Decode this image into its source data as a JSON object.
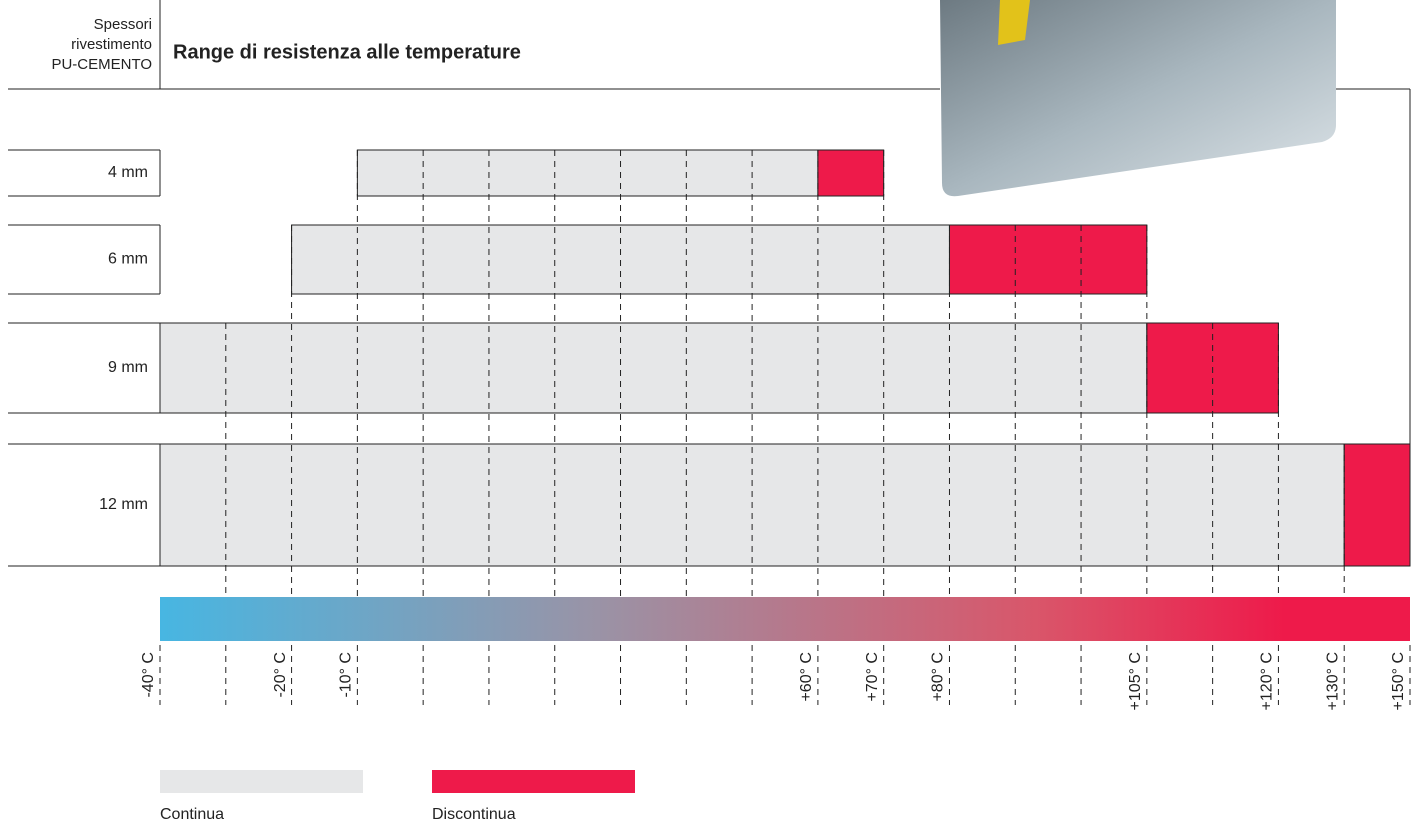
{
  "chart_data": {
    "type": "range",
    "title": "Range di resistenza alle temperature",
    "y_axis_label": "Spessori\nrivestimento\nPU-CEMENTO",
    "categories": [
      "4 mm",
      "6 mm",
      "9 mm",
      "12 mm"
    ],
    "series": [
      {
        "name": "Continua",
        "color": "#e6e7e8",
        "values": [
          [
            -10,
            60
          ],
          [
            -20,
            80
          ],
          [
            -40,
            105
          ],
          [
            -40,
            130
          ]
        ]
      },
      {
        "name": "Discontinua",
        "color": "#ee1a4a",
        "values": [
          [
            60,
            70
          ],
          [
            80,
            105
          ],
          [
            105,
            120
          ],
          [
            130,
            150
          ]
        ]
      }
    ],
    "xticks": [
      {
        "value": -40,
        "label": "-40° C"
      },
      {
        "value": -20,
        "label": "-20° C"
      },
      {
        "value": -10,
        "label": "-10° C"
      },
      {
        "value": 60,
        "label": "+60° C"
      },
      {
        "value": 70,
        "label": "+70° C"
      },
      {
        "value": 80,
        "label": "+80° C"
      },
      {
        "value": 105,
        "label": "+105° C"
      },
      {
        "value": 120,
        "label": "+120° C"
      },
      {
        "value": 130,
        "label": "+130° C"
      },
      {
        "value": 150,
        "label": "+150° C"
      }
    ]
  }
}
